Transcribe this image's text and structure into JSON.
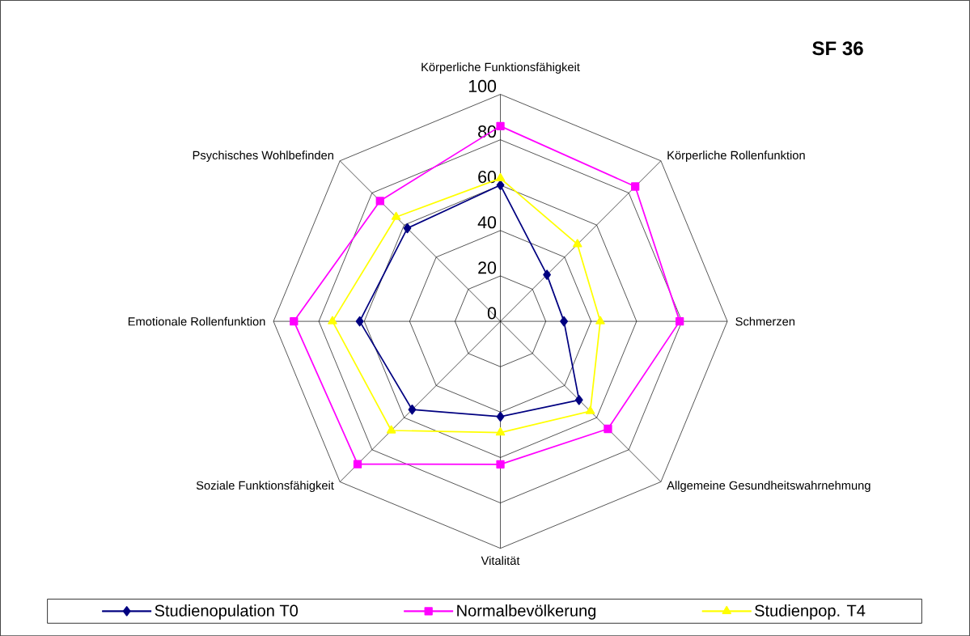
{
  "chart_data": {
    "type": "radar",
    "title": "SF 36",
    "categories": [
      "Körperliche Funktionsfähigkeit",
      "Körperliche Rollenfunktion",
      "Schmerzen",
      "Allgemeine Gesundheitswahrnehmung",
      "Vitalität",
      "Soziale Funktionsfähigkeit",
      "Emotionale Rollenfunktion",
      "Psychisches Wohlbefinden"
    ],
    "ylim": [
      0,
      100
    ],
    "yticks": [
      0,
      20,
      40,
      60,
      80,
      100
    ],
    "grid": true,
    "legend": "bottom",
    "series": [
      {
        "name": "Studienopulation T0",
        "color": "#000080",
        "marker": "diamond",
        "values": [
          60,
          29,
          28,
          49,
          42,
          55,
          62,
          58
        ]
      },
      {
        "name": "Normalbevölkerung",
        "color": "#ff00ff",
        "marker": "square",
        "values": [
          86,
          84,
          79,
          67,
          63,
          89,
          91,
          75
        ]
      },
      {
        "name": "Studienpop. T4",
        "color": "#ffff00",
        "marker": "triangle",
        "values": [
          63,
          48,
          44,
          56,
          49,
          68,
          74,
          65
        ]
      }
    ]
  }
}
